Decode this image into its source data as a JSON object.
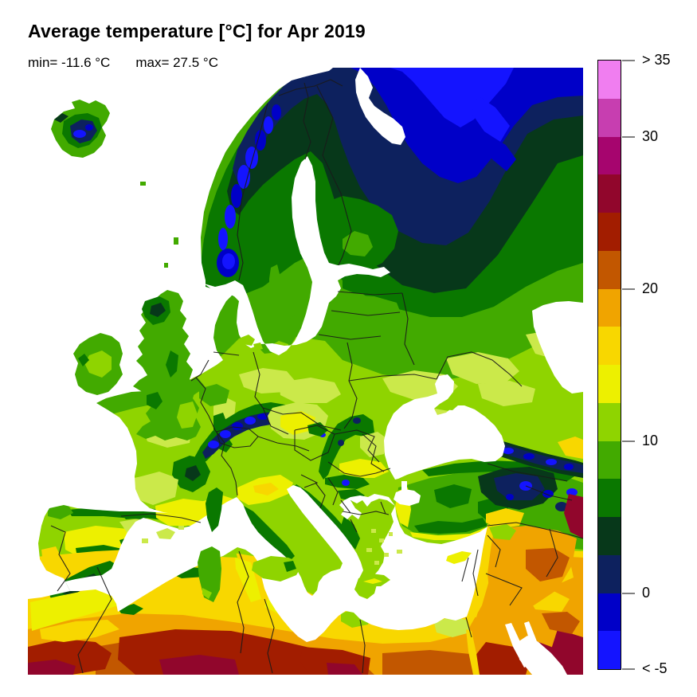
{
  "title": "Average temperature [°C] for Apr 2019",
  "stats": {
    "min": "min= -11.6 °C",
    "max": "max= 27.5 °C"
  },
  "colorbar": {
    "orientation": "vertical",
    "unit": "°C",
    "value_range": [
      -5,
      35
    ],
    "segment_step_c": 2.5,
    "segments_top_to_bottom": [
      {
        "range_c": "32.5 to >35",
        "color": "#F07EF0"
      },
      {
        "range_c": "30 to 32.5",
        "color": "#C73EB0"
      },
      {
        "range_c": "27.5 to 30",
        "color": "#A6056E"
      },
      {
        "range_c": "25 to 27.5",
        "color": "#91062C"
      },
      {
        "range_c": "22.5 to 25",
        "color": "#A21D00"
      },
      {
        "range_c": "20 to 22.5",
        "color": "#C25700"
      },
      {
        "range_c": "17.5 to 20",
        "color": "#F0A400"
      },
      {
        "range_c": "15 to 17.5",
        "color": "#F8D700"
      },
      {
        "range_c": "12.5 to 15",
        "color": "#EDF000"
      },
      {
        "range_c": "10 to 12.5",
        "color": "#8FD400"
      },
      {
        "range_c": "7.5 to 10",
        "color": "#42AA00"
      },
      {
        "range_c": "5 to 7.5",
        "color": "#0A7800"
      },
      {
        "range_c": "2.5 to 5",
        "color": "#07381A"
      },
      {
        "range_c": "0 to 2.5",
        "color": "#0D215E"
      },
      {
        "range_c": "-2.5 to 0",
        "color": "#0000C8"
      },
      {
        "range_c": "<-5 to -2.5",
        "color": "#1414FF"
      }
    ],
    "ticks": [
      {
        "value": 35,
        "label": "> 35"
      },
      {
        "value": 30,
        "label": "30"
      },
      {
        "value": 20,
        "label": "20"
      },
      {
        "value": 10,
        "label": "10"
      },
      {
        "value": 0,
        "label": "0"
      },
      {
        "value": -5,
        "label": "< -5"
      }
    ]
  },
  "map": {
    "region": "Europe and North Africa",
    "type": "filled temperature raster with country borders",
    "sea_color": "#FFFFFF",
    "country_border_color": "#1A1A1A"
  }
}
